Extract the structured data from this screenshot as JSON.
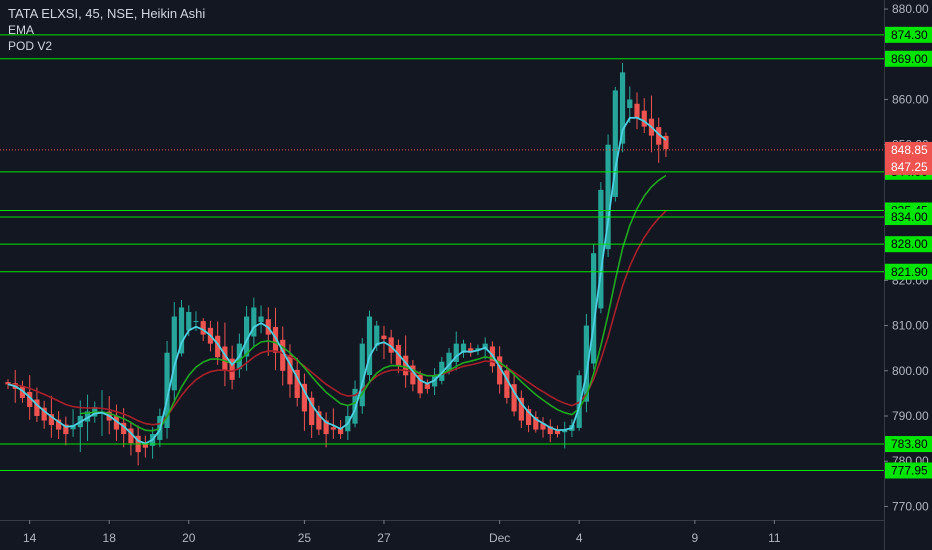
{
  "legend": {
    "symbol_line": "TATA ELXSI, 45, NSE, Heikin Ashi",
    "indicator_1": "EMA",
    "indicator_2": "POD V2"
  },
  "colors": {
    "background": "#131722",
    "level_line": "#00e600",
    "up_candle": "#26a69a",
    "down_candle": "#ef5350",
    "ema_fast": "#4dd0e1",
    "ema_mid": "#1fa91f",
    "ema_slow": "#a8202a",
    "current_price_label": "#ef5350"
  },
  "chart_data": {
    "type": "candlestick",
    "price_ticks": [
      "880.00",
      "860.00",
      "850.00",
      "820.00",
      "810.00",
      "800.00",
      "790.00",
      "780.00",
      "770.00"
    ],
    "ylim": [
      767,
      882
    ],
    "time_ticks": [
      {
        "label": "14",
        "bar": 3
      },
      {
        "label": "18",
        "bar": 14
      },
      {
        "label": "20",
        "bar": 25
      },
      {
        "label": "25",
        "bar": 41
      },
      {
        "label": "27",
        "bar": 52
      },
      {
        "label": "Dec",
        "bar": 68
      },
      {
        "label": "4",
        "bar": 79
      },
      {
        "label": "9",
        "bar": 95
      },
      {
        "label": "11",
        "bar": 106
      }
    ],
    "levels": [
      "874.30",
      "869.00",
      "844.00",
      "835.45",
      "834.00",
      "828.00",
      "821.90",
      "783.80",
      "777.95"
    ],
    "current_price": {
      "value": "848.85",
      "secondary": "847.25"
    },
    "closes": [
      797,
      796,
      794,
      792,
      790,
      789,
      788,
      787,
      786,
      788,
      790,
      791,
      792,
      791,
      789,
      787,
      786,
      784,
      782,
      783,
      786,
      790,
      804,
      812,
      814,
      813,
      811,
      808,
      806,
      803,
      800,
      798,
      806,
      812,
      814,
      812,
      808,
      804,
      800,
      797,
      794,
      791,
      788,
      787,
      786,
      787,
      786,
      790,
      796,
      806,
      812,
      810,
      807,
      804,
      801,
      799,
      797,
      795,
      796,
      799,
      802,
      804,
      806,
      806,
      804,
      805,
      806,
      801,
      797,
      794,
      791,
      789,
      788,
      787,
      787,
      786,
      786,
      787,
      788,
      799,
      810,
      826,
      840,
      850,
      862,
      866,
      860,
      856,
      854,
      852,
      850,
      849
    ]
  }
}
